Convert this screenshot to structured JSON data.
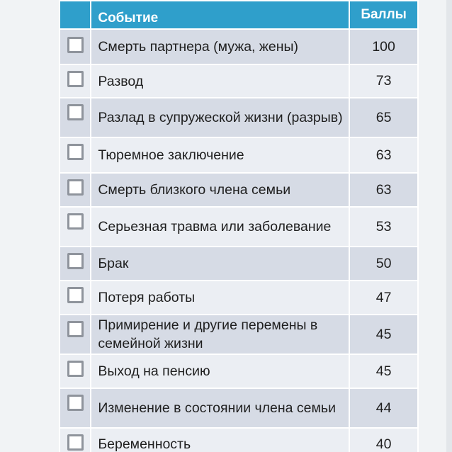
{
  "table": {
    "headers": {
      "event": "Событие",
      "score": "Баллы"
    },
    "rows": [
      {
        "event": "Смерть партнера (мужа, жены)",
        "score": "100"
      },
      {
        "event": "Развод",
        "score": "73"
      },
      {
        "event": "Разлад в супружеской жизни (разрыв)",
        "score": "65"
      },
      {
        "event": "Тюремное заключение",
        "score": "63"
      },
      {
        "event": "Смерть близкого члена семьи",
        "score": "63"
      },
      {
        "event": "Серьезная травма или заболевание",
        "score": "53"
      },
      {
        "event": "Брак",
        "score": "50"
      },
      {
        "event": "Потеря работы",
        "score": "47"
      },
      {
        "event": "Примирение и другие перемены в семейной жизни",
        "score": "45"
      },
      {
        "event": "Выход на пенсию",
        "score": "45"
      },
      {
        "event": "Изменение в состоянии члена семьи",
        "score": "44"
      },
      {
        "event": "Беременность",
        "score": "40"
      }
    ]
  },
  "colors": {
    "header_bg": "#2f9fcb",
    "row_dark": "#d6dbe5",
    "row_light": "#ebeef3",
    "checkbox_border": "#8f949c"
  }
}
